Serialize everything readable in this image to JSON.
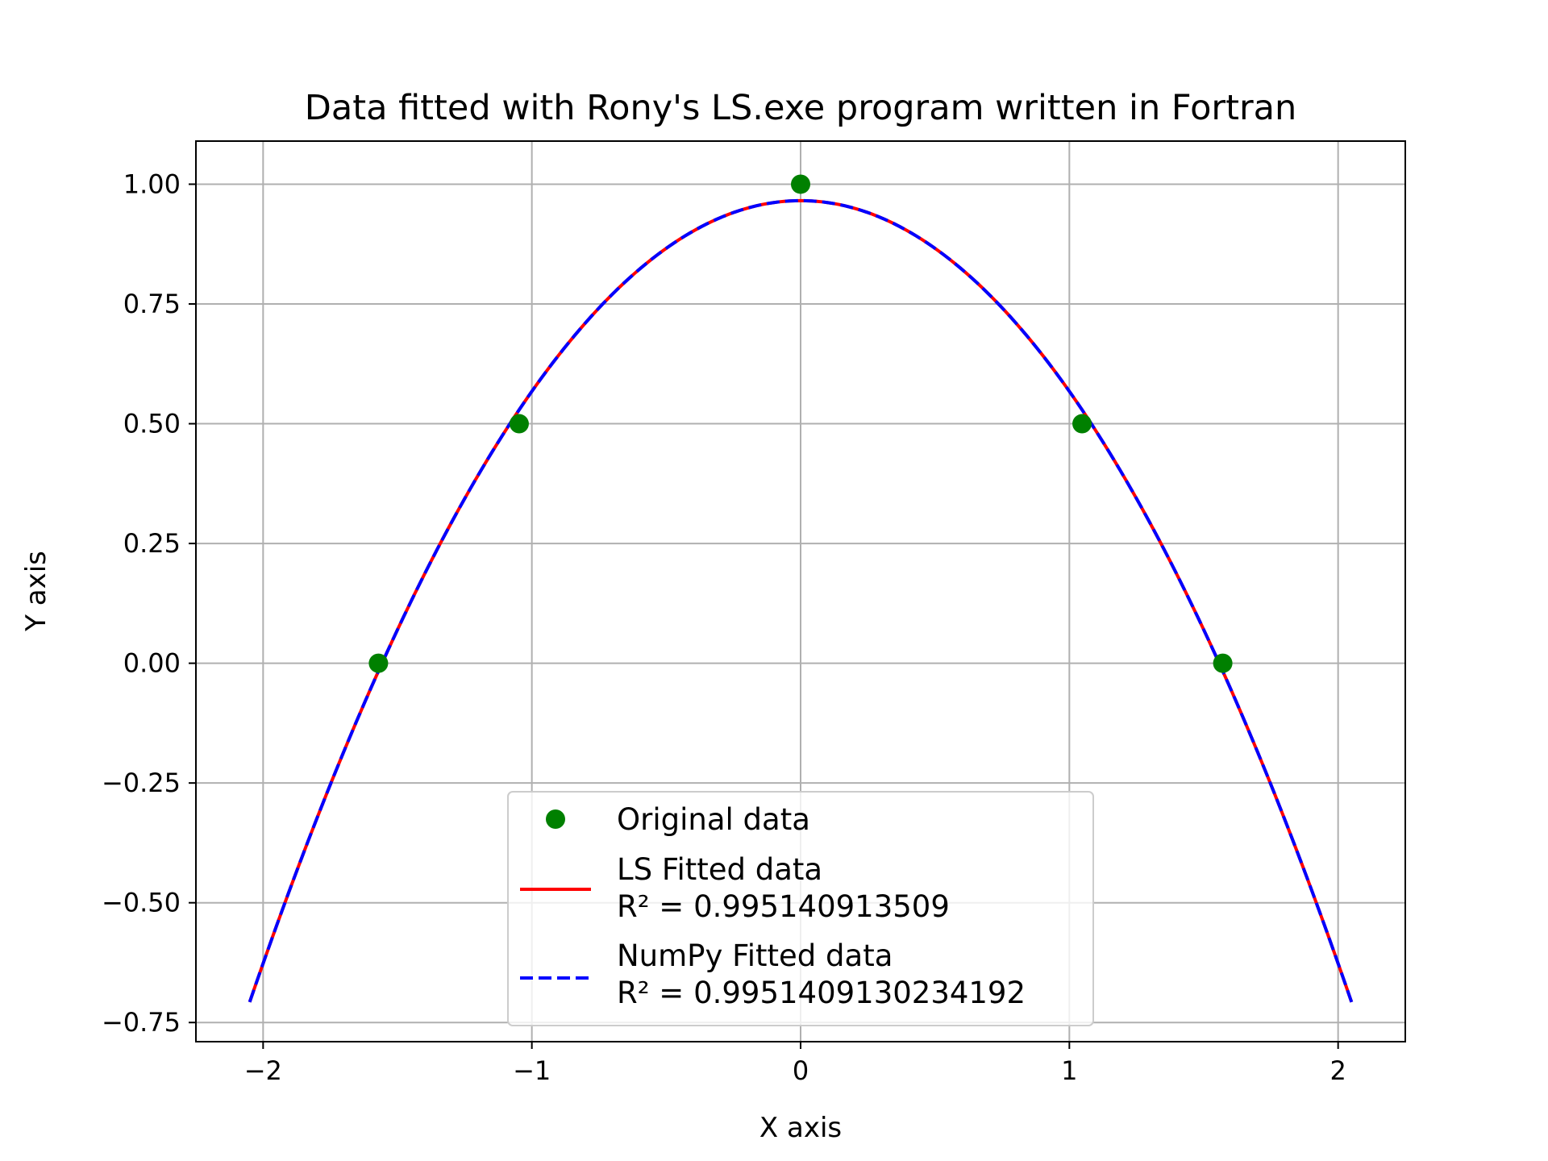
{
  "chart_data": {
    "type": "line",
    "title": "Data fitted with Rony's LS.exe program written in Fortran",
    "xlabel": "X axis",
    "ylabel": "Y axis",
    "xlim": [
      -2.25,
      2.25
    ],
    "ylim": [
      -0.79,
      1.09
    ],
    "xticks": [
      -2,
      -1,
      0,
      1,
      2
    ],
    "xtick_labels": [
      "−2",
      "−1",
      "0",
      "1",
      "2"
    ],
    "yticks": [
      1.0,
      0.75,
      0.5,
      0.25,
      0.0,
      -0.25,
      -0.5,
      -0.75
    ],
    "ytick_labels": [
      "1.00",
      "0.75",
      "0.50",
      "0.25",
      "0.00",
      "−0.25",
      "−0.50",
      "−0.75"
    ],
    "grid": true,
    "legend_position": "bottom-center",
    "series": [
      {
        "name": "Original data",
        "type": "scatter",
        "color": "#008000",
        "points": [
          {
            "x": -1.5708,
            "y": 0.0
          },
          {
            "x": -1.0472,
            "y": 0.5
          },
          {
            "x": 0.0,
            "y": 1.0
          },
          {
            "x": 1.0472,
            "y": 0.5
          },
          {
            "x": 1.5708,
            "y": 0.0
          }
        ]
      },
      {
        "name": "LS Fitted data",
        "name_line2": "R² = 0.995140913509",
        "type": "line",
        "style": "solid",
        "color": "#ff0000",
        "model": "quadratic",
        "coefficients": {
          "a": -0.3981,
          "b": 0.0,
          "c": 0.9657
        },
        "x_range": [
          -2.05,
          2.05
        ]
      },
      {
        "name": "NumPy Fitted data",
        "name_line2": "R² = 0.9951409130234192",
        "type": "line",
        "style": "dashed",
        "color": "#0000ff",
        "model": "quadratic",
        "coefficients": {
          "a": -0.3981,
          "b": 0.0,
          "c": 0.9657
        },
        "x_range": [
          -2.05,
          2.05
        ]
      }
    ]
  }
}
